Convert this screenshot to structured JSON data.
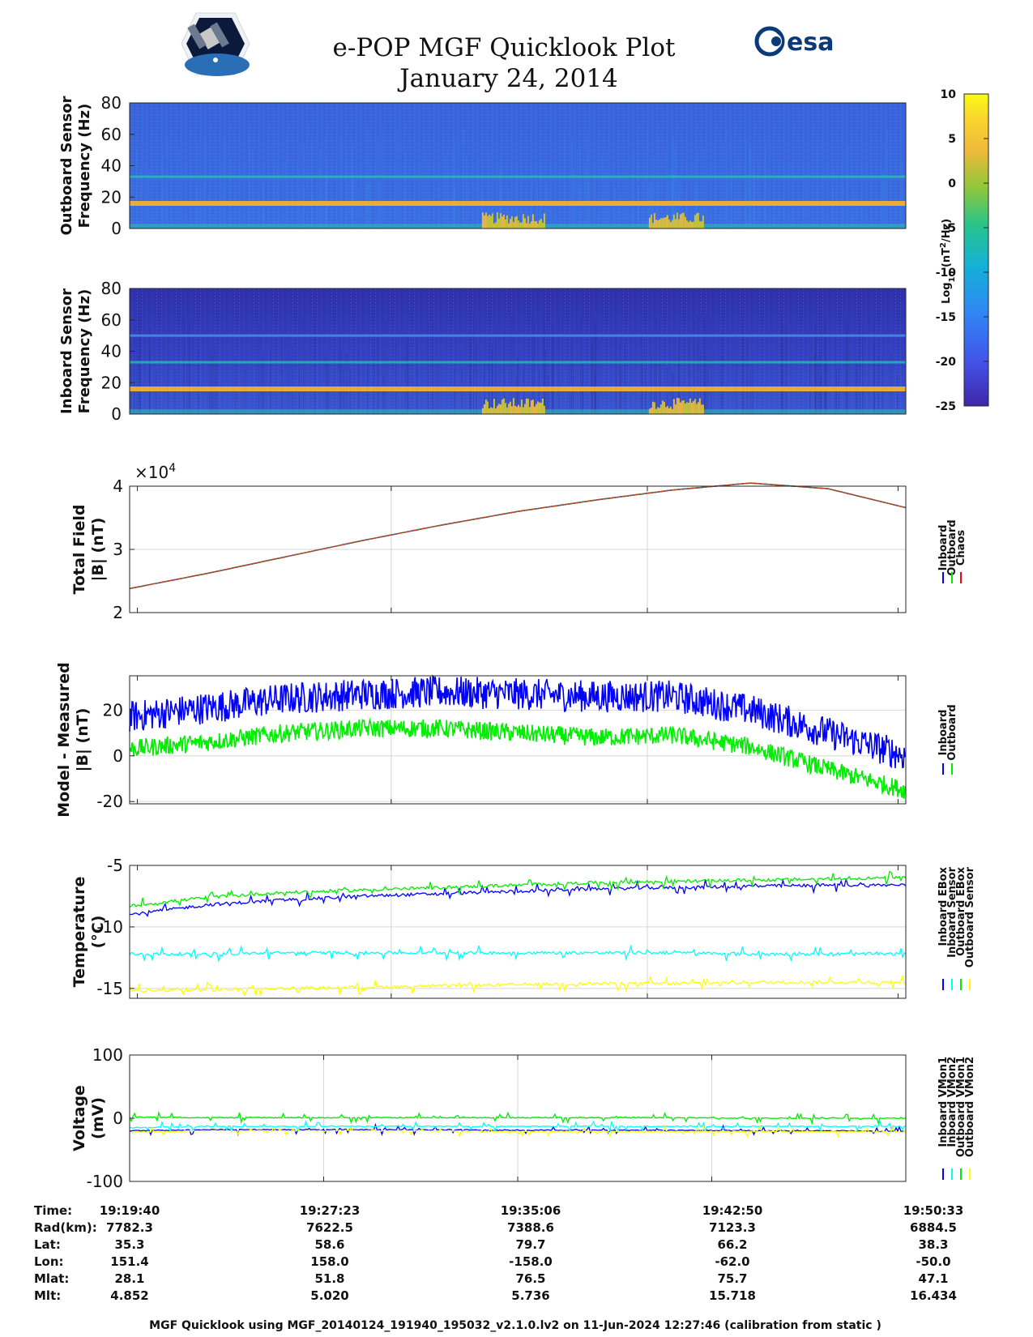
{
  "header": {
    "title": "e-POP MGF Quicklook Plot",
    "date": "January 24, 2014",
    "left_logo": "cassiope-mission-logo",
    "right_logo_text": "esa"
  },
  "colorbar": {
    "label_base": "Log",
    "label_sub": "10",
    "label_paren_open": " (nT",
    "label_sup": "2",
    "label_tail": "/Hz)",
    "ticks": [
      "10",
      "5",
      "0",
      "-5",
      "-10",
      "-15",
      "-20",
      "-25"
    ]
  },
  "colors": {
    "inboard": "#0000ff",
    "outboard": "#00ee00",
    "chaos": "#ff0000",
    "cyan": "#00ffff",
    "yellow": "#ffff00",
    "spectro_bg_outboard": "#3a5fd6",
    "spectro_bg_inboard": "#3236b8",
    "line_16hz": "#f0b030"
  },
  "chart_data": [
    {
      "type": "heatmap",
      "ylabel_line1": "Outboard Sensor",
      "ylabel_line2": "Frequency (Hz)",
      "ylim": [
        0,
        80
      ],
      "yticks": [
        "80",
        "60",
        "40",
        "20",
        "0"
      ],
      "spectral_lines_hz": [
        16,
        33
      ],
      "bursts": [
        {
          "from_frac": 0.455,
          "to_frac": 0.535
        },
        {
          "from_frac": 0.67,
          "to_frac": 0.74
        }
      ]
    },
    {
      "type": "heatmap",
      "ylabel_line1": "Inboard Sensor",
      "ylabel_line2": "Frequency (Hz)",
      "ylim": [
        0,
        80
      ],
      "yticks": [
        "80",
        "60",
        "40",
        "20",
        "0"
      ],
      "spectral_lines_hz": [
        16,
        33,
        50
      ],
      "bursts": [
        {
          "from_frac": 0.455,
          "to_frac": 0.535
        },
        {
          "from_frac": 0.67,
          "to_frac": 0.74
        }
      ]
    },
    {
      "type": "line",
      "ylabel_line1": "Total Field",
      "ylabel_line2": "|B| (nT)",
      "exponent_label": "×10",
      "exponent_power": "4",
      "ylim": [
        2,
        4
      ],
      "yticks": [
        "4",
        "3",
        "2"
      ],
      "x": [
        0,
        0.1,
        0.2,
        0.3,
        0.4,
        0.5,
        0.6,
        0.7,
        0.8,
        0.9,
        1.0
      ],
      "series": [
        {
          "name": "Inboard",
          "values": [
            2.38,
            2.62,
            2.88,
            3.14,
            3.38,
            3.6,
            3.78,
            3.94,
            4.05,
            3.96,
            3.66
          ]
        },
        {
          "name": "Outboard",
          "values": [
            2.38,
            2.62,
            2.88,
            3.14,
            3.38,
            3.6,
            3.78,
            3.94,
            4.05,
            3.96,
            3.66
          ]
        },
        {
          "name": "Chaos",
          "values": [
            2.38,
            2.62,
            2.88,
            3.14,
            3.38,
            3.6,
            3.78,
            3.94,
            4.05,
            3.96,
            3.66
          ]
        }
      ],
      "legend": [
        "Inboard",
        "Outboard",
        "Chaos"
      ]
    },
    {
      "type": "line",
      "ylabel_line1": "Model - Measured",
      "ylabel_line2": "|B| (nT)",
      "ylim": [
        -21,
        35
      ],
      "yticks": [
        "20",
        "0",
        "-20"
      ],
      "ytick_values": [
        20,
        0,
        -20
      ],
      "x": [
        0,
        0.1,
        0.2,
        0.3,
        0.4,
        0.5,
        0.6,
        0.7,
        0.8,
        0.9,
        1.0
      ],
      "series": [
        {
          "name": "Inboard",
          "values": [
            17,
            21,
            25,
            27,
            28,
            27,
            26,
            26,
            20,
            10,
            0
          ],
          "spread": 7
        },
        {
          "name": "Outboard",
          "values": [
            3,
            6,
            10,
            12,
            12,
            10,
            8,
            9,
            4,
            -6,
            -15
          ],
          "spread": 4
        }
      ],
      "legend": [
        "Inboard",
        "Outboard"
      ]
    },
    {
      "type": "line",
      "ylabel_line1": "Temperature",
      "ylabel_line2": "(°C)",
      "ylim": [
        -15.8,
        -5
      ],
      "yticks": [
        "-5",
        "-10",
        "-15"
      ],
      "ytick_values": [
        -5,
        -10,
        -15
      ],
      "x": [
        0,
        0.1,
        0.2,
        0.3,
        0.4,
        0.5,
        0.6,
        0.7,
        0.8,
        0.9,
        1.0
      ],
      "series": [
        {
          "name": "Inboard EBox",
          "values": [
            -9.0,
            -8.2,
            -7.8,
            -7.5,
            -7.3,
            -7.1,
            -6.9,
            -6.8,
            -6.7,
            -6.6,
            -6.6
          ]
        },
        {
          "name": "Inboard Sensor",
          "values": [
            -12.2,
            -12.2,
            -12.1,
            -12.1,
            -12.1,
            -12.1,
            -12.1,
            -12.1,
            -12.2,
            -12.2,
            -12.2
          ]
        },
        {
          "name": "Outboard EBox",
          "values": [
            -8.3,
            -7.6,
            -7.2,
            -7.0,
            -6.8,
            -6.6,
            -6.4,
            -6.3,
            -6.2,
            -6.1,
            -6.0
          ]
        },
        {
          "name": "Outboard Sensor",
          "values": [
            -15.2,
            -15.1,
            -15.0,
            -14.9,
            -14.8,
            -14.7,
            -14.6,
            -14.6,
            -14.5,
            -14.5,
            -14.5
          ]
        }
      ],
      "legend": [
        "Inboard EBox",
        "Inboard Sensor",
        "Outboard EBox",
        "Outboard Sensor"
      ]
    },
    {
      "type": "line",
      "ylabel_line1": "Voltage",
      "ylabel_line2": "(mV)",
      "ylim": [
        -100,
        100
      ],
      "yticks": [
        "100",
        "0",
        "-100"
      ],
      "ytick_values": [
        100,
        0,
        -100
      ],
      "x": [
        0,
        0.1,
        0.2,
        0.3,
        0.4,
        0.5,
        0.6,
        0.7,
        0.8,
        0.9,
        1.0
      ],
      "series": [
        {
          "name": "Inboard VMon1",
          "values": [
            -20,
            -18,
            -18,
            -18,
            -18,
            -19,
            -19,
            -19,
            -20,
            -20,
            -21
          ]
        },
        {
          "name": "Inboard VMon2",
          "values": [
            -15,
            -13,
            -13,
            -13,
            -13,
            -13,
            -13,
            -13,
            -13,
            -13,
            -13
          ]
        },
        {
          "name": "Outboard VMon1",
          "values": [
            2,
            1,
            1,
            1,
            1,
            1,
            1,
            1,
            0,
            0,
            0
          ]
        },
        {
          "name": "Outboard VMon2",
          "values": [
            -22,
            -20,
            -20,
            -20,
            -20,
            -21,
            -21,
            -21,
            -21,
            -21,
            -22
          ]
        }
      ],
      "legend": [
        "Inboard VMon1",
        "Inboard VMon2",
        "Outboard VMon1",
        "Outboard VMon2"
      ]
    }
  ],
  "ephemeris": {
    "row_labels": [
      "Time:",
      "Rad(km):",
      "Lat:",
      "Lon:",
      "Mlat:",
      "Mlt:"
    ],
    "columns": [
      [
        "19:19:40",
        "7782.3",
        "35.3",
        "151.4",
        "28.1",
        "4.852"
      ],
      [
        "19:27:23",
        "7622.5",
        "58.6",
        "158.0",
        "51.8",
        "5.020"
      ],
      [
        "19:35:06",
        "7388.6",
        "79.7",
        "-158.0",
        "76.5",
        "5.736"
      ],
      [
        "19:42:50",
        "7123.3",
        "66.2",
        "-62.0",
        "75.7",
        "15.718"
      ],
      [
        "19:50:33",
        "6884.5",
        "38.3",
        "-50.0",
        "47.1",
        "16.434"
      ]
    ]
  },
  "footer": "MGF Quicklook using MGF_20140124_191940_195032_v2.1.0.lv2 on 11-Jun-2024 12:27:46 (calibration from static )"
}
